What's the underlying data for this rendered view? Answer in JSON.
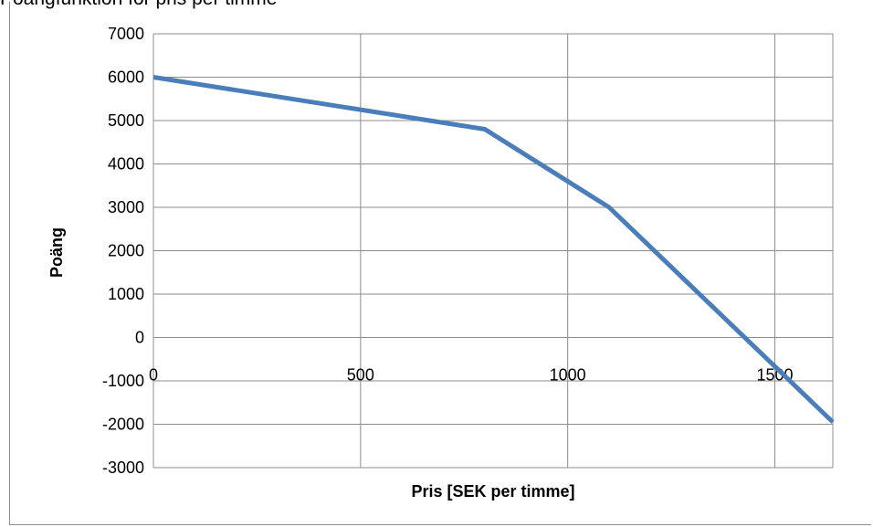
{
  "page": {
    "cut_title": "Poängfunktion för pris per timme"
  },
  "chart_data": {
    "type": "line",
    "title": "",
    "xlabel": "Pris [SEK per timme]",
    "ylabel": "Poäng",
    "xlim": [
      0,
      1640
    ],
    "ylim": [
      -3000,
      7000
    ],
    "x_ticks": [
      0,
      500,
      1000,
      1500
    ],
    "y_ticks": [
      7000,
      6000,
      5000,
      4000,
      3000,
      2000,
      1000,
      0,
      -1000,
      -2000,
      -3000
    ],
    "grid": true,
    "legend": "none",
    "line_color": "#4a7ebb",
    "series": [
      {
        "x": [
          0,
          800,
          1100,
          1640
        ],
        "values": [
          6000,
          4800,
          3000,
          -1950
        ]
      }
    ]
  }
}
